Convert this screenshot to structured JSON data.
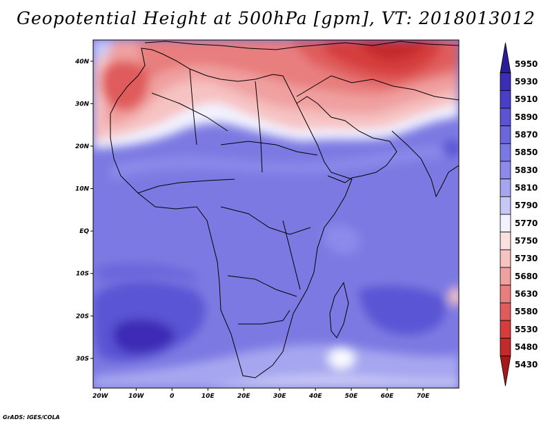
{
  "title": "Geopotential Height at 500hPa [gpm], VT: 2018013012",
  "credit": "GrADS: IGES/COLA",
  "chart_data": {
    "type": "heatmap",
    "variable": "Geopotential Height at 500hPa",
    "units": "gpm",
    "valid_time": "2018013012",
    "x_ticks": [
      "20W",
      "10W",
      "0",
      "10E",
      "20E",
      "30E",
      "40E",
      "50E",
      "60E",
      "70E"
    ],
    "y_ticks": [
      "40N",
      "30N",
      "20N",
      "10N",
      "EQ",
      "10S",
      "20S",
      "30S"
    ],
    "x_tick_values": [
      -20,
      -10,
      0,
      10,
      20,
      30,
      40,
      50,
      60,
      70
    ],
    "y_tick_values": [
      40,
      30,
      20,
      10,
      0,
      -10,
      -20,
      -30
    ],
    "lon_range": [
      -22,
      80
    ],
    "lat_range": [
      -37,
      45
    ],
    "colorbar": {
      "levels": [
        5950,
        5930,
        5910,
        5890,
        5870,
        5850,
        5830,
        5810,
        5790,
        5770,
        5750,
        5730,
        5680,
        5630,
        5580,
        5530,
        5480,
        5430
      ],
      "colors": [
        "#2a1c96",
        "#3c2cb6",
        "#4a3ec8",
        "#5a54d4",
        "#6a66dc",
        "#7a78e2",
        "#8c8aea",
        "#a6a6f0",
        "#c8c8f6",
        "#f2f2ff",
        "#fbe0e0",
        "#f6c2c2",
        "#f0a0a0",
        "#e87e7e",
        "#e05c5c",
        "#d63c3c",
        "#c42a2a",
        "#a81818"
      ]
    },
    "features": [
      {
        "name": "ridge-north-africa-middle-east",
        "value": 5480
      },
      {
        "name": "high-southern-atlantic",
        "value": 5890
      },
      {
        "name": "high-southern-indian",
        "value": 5870
      },
      {
        "name": "cell-madagascar-south",
        "value": 5770
      }
    ]
  }
}
